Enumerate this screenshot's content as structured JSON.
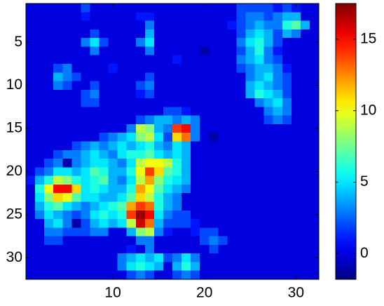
{
  "chart_data": {
    "type": "heatmap",
    "colormap": "jet",
    "y_reversed": true,
    "xlim": [
      0.5,
      32.5
    ],
    "ylim": [
      0.5,
      32.5
    ],
    "xticks": [
      10,
      20,
      30
    ],
    "yticks": [
      5,
      10,
      15,
      20,
      25,
      30
    ],
    "clim": [
      -1.8,
      17.5
    ],
    "cticks": [
      0,
      5,
      10,
      15
    ],
    "z": [
      [
        0,
        0,
        0,
        0,
        0,
        0,
        2,
        0,
        0,
        0,
        0,
        0,
        0,
        0,
        0,
        0,
        0,
        0,
        0,
        0,
        0,
        0,
        0,
        2,
        2,
        2,
        2,
        1,
        2,
        1,
        0,
        0
      ],
      [
        0,
        0,
        0,
        0,
        0,
        0,
        1,
        0,
        0,
        0,
        0,
        0,
        1,
        1,
        0,
        0,
        0,
        0,
        0,
        0,
        0,
        0,
        0,
        2,
        3,
        3,
        2,
        3,
        4,
        4,
        0,
        0
      ],
      [
        0,
        0,
        0,
        0,
        0,
        0,
        0,
        0,
        0,
        0,
        0,
        0,
        0,
        3,
        0,
        0,
        0,
        0,
        0,
        0,
        0,
        0,
        1,
        2,
        3,
        4,
        3,
        3,
        6,
        7,
        4,
        0
      ],
      [
        0,
        0,
        0,
        0,
        0,
        0,
        0,
        2,
        0,
        0,
        0,
        0,
        0,
        4,
        0,
        0,
        0,
        0,
        0,
        0,
        0,
        0,
        0,
        2,
        4,
        5,
        4,
        2,
        4,
        3,
        0,
        0
      ],
      [
        0,
        0,
        0,
        0,
        0,
        0,
        3,
        5,
        2,
        0,
        0,
        0,
        3,
        5,
        0,
        0,
        0,
        0,
        0,
        0,
        0,
        0,
        0,
        3,
        5,
        6,
        4,
        2,
        0,
        0,
        0,
        0
      ],
      [
        0,
        0,
        0,
        0,
        0,
        0,
        0,
        3,
        0,
        0,
        0,
        0,
        0,
        3,
        0,
        0,
        0,
        0,
        0,
        -1,
        0,
        0,
        0,
        2,
        4,
        6,
        3,
        1,
        0,
        0,
        0,
        0
      ],
      [
        0,
        0,
        0,
        0,
        0,
        0,
        0,
        0,
        0,
        0,
        0,
        0,
        0,
        0,
        0,
        0,
        1,
        0,
        0,
        0,
        0,
        0,
        0,
        3,
        4,
        5,
        3,
        2,
        0,
        0,
        0,
        0
      ],
      [
        0,
        0,
        0,
        2,
        3,
        0,
        0,
        0,
        0,
        1,
        0,
        0,
        0,
        0,
        0,
        0,
        0,
        0,
        0,
        0,
        0,
        0,
        0,
        2,
        3,
        4,
        4,
        3,
        1,
        0,
        0,
        0
      ],
      [
        0,
        0,
        0,
        4,
        3,
        2,
        0,
        0,
        0,
        0,
        0,
        0,
        0,
        2,
        0,
        0,
        0,
        0,
        0,
        0,
        0,
        0,
        0,
        0,
        3,
        4,
        5,
        3,
        2,
        0,
        0,
        0
      ],
      [
        0,
        0,
        0,
        3,
        2,
        0,
        0,
        2,
        0,
        0,
        0,
        0,
        2,
        3,
        0,
        0,
        0,
        0,
        0,
        0,
        0,
        0,
        0,
        0,
        4,
        5,
        4,
        3,
        2,
        0,
        0,
        0
      ],
      [
        0,
        0,
        0,
        0,
        0,
        0,
        2,
        3,
        0,
        0,
        0,
        0,
        1,
        2,
        0,
        0,
        0,
        0,
        0,
        0,
        0,
        0,
        0,
        0,
        4,
        6,
        5,
        4,
        2,
        0,
        0,
        0
      ],
      [
        0,
        0,
        0,
        0,
        0,
        0,
        2,
        2,
        0,
        0,
        0,
        0,
        0,
        0,
        0,
        0,
        0,
        0,
        0,
        0,
        0,
        0,
        0,
        0,
        0,
        3,
        4,
        5,
        3,
        0,
        0,
        0
      ],
      [
        0,
        0,
        0,
        0,
        0,
        0,
        0,
        0,
        0,
        0,
        0,
        0,
        0,
        0,
        0,
        2,
        2,
        1,
        0,
        0,
        0,
        0,
        0,
        0,
        0,
        0,
        3,
        4,
        3,
        0,
        0,
        0
      ],
      [
        0,
        0,
        0,
        0,
        0,
        0,
        0,
        0,
        0,
        0,
        0,
        0,
        2,
        3,
        4,
        4,
        3,
        4,
        3,
        0,
        0,
        0,
        0,
        0,
        0,
        0,
        2,
        3,
        2,
        0,
        0,
        0
      ],
      [
        0,
        0,
        0,
        0,
        0,
        0,
        0,
        0,
        0,
        0,
        0,
        3,
        9,
        8,
        4,
        3,
        14,
        15,
        3,
        0,
        0,
        0,
        0,
        0,
        0,
        0,
        0,
        0,
        0,
        0,
        0,
        0
      ],
      [
        0,
        0,
        0,
        0,
        0,
        0,
        0,
        0,
        2,
        3,
        4,
        5,
        8,
        9,
        5,
        2,
        11,
        13,
        3,
        0,
        -1,
        0,
        0,
        0,
        0,
        0,
        0,
        0,
        0,
        0,
        0,
        0
      ],
      [
        0,
        0,
        0,
        0,
        0,
        2,
        3,
        4,
        3,
        4,
        5,
        4,
        5,
        6,
        4,
        3,
        5,
        4,
        0,
        0,
        0,
        0,
        0,
        0,
        0,
        0,
        0,
        0,
        0,
        0,
        0,
        0
      ],
      [
        0,
        0,
        0,
        2,
        3,
        3,
        4,
        5,
        4,
        3,
        5,
        6,
        6,
        7,
        5,
        4,
        5,
        4,
        0,
        0,
        0,
        0,
        0,
        0,
        0,
        0,
        0,
        0,
        0,
        0,
        0,
        0
      ],
      [
        0,
        0,
        2,
        3,
        -1,
        3,
        4,
        5,
        5,
        4,
        3,
        5,
        9,
        10,
        10,
        9,
        6,
        4,
        0,
        0,
        0,
        0,
        0,
        0,
        0,
        0,
        0,
        0,
        0,
        0,
        0,
        0
      ],
      [
        0,
        2,
        3,
        5,
        5,
        4,
        5,
        7,
        6,
        4,
        4,
        6,
        10,
        14,
        11,
        7,
        6,
        4,
        0,
        0,
        0,
        0,
        0,
        0,
        0,
        0,
        0,
        0,
        0,
        0,
        0,
        0
      ],
      [
        1,
        4,
        6,
        9,
        8,
        6,
        5,
        6,
        7,
        4,
        3,
        5,
        9,
        12,
        8,
        6,
        5,
        4,
        0,
        0,
        0,
        0,
        0,
        0,
        0,
        0,
        0,
        0,
        0,
        0,
        0,
        0
      ],
      [
        0,
        6,
        10,
        15,
        15,
        11,
        5,
        6,
        5,
        4,
        4,
        6,
        12,
        10,
        7,
        5,
        4,
        3,
        0,
        0,
        0,
        0,
        0,
        0,
        0,
        0,
        0,
        0,
        0,
        0,
        0,
        0
      ],
      [
        0,
        5,
        8,
        11,
        10,
        7,
        5,
        5,
        4,
        4,
        5,
        7,
        11,
        9,
        6,
        4,
        3,
        0,
        0,
        0,
        0,
        0,
        0,
        0,
        0,
        0,
        0,
        0,
        0,
        0,
        0,
        0
      ],
      [
        0,
        4,
        6,
        7,
        5,
        4,
        3,
        4,
        5,
        6,
        7,
        12,
        14,
        13,
        6,
        4,
        3,
        0,
        0,
        0,
        0,
        0,
        0,
        0,
        0,
        0,
        0,
        0,
        0,
        0,
        0,
        0
      ],
      [
        0,
        3,
        5,
        4,
        3,
        2,
        3,
        5,
        6,
        5,
        6,
        14,
        17,
        15,
        5,
        3,
        2,
        2,
        0,
        0,
        0,
        0,
        0,
        0,
        0,
        0,
        0,
        0,
        0,
        0,
        0,
        0
      ],
      [
        0,
        0,
        4,
        5,
        3,
        -1,
        2,
        4,
        5,
        4,
        5,
        9,
        16,
        13,
        4,
        2,
        2,
        2,
        1,
        0,
        0,
        0,
        0,
        0,
        0,
        0,
        0,
        0,
        0,
        0,
        0,
        0
      ],
      [
        0,
        0,
        3,
        3,
        2,
        2,
        2,
        3,
        3,
        0,
        0,
        4,
        8,
        9,
        3,
        1,
        0,
        0,
        1,
        2,
        2,
        0,
        0,
        0,
        0,
        0,
        0,
        0,
        0,
        0,
        0,
        0
      ],
      [
        0,
        0,
        2,
        2,
        0,
        0,
        0,
        0,
        0,
        0,
        0,
        0,
        3,
        3,
        0,
        0,
        0,
        0,
        0,
        2,
        3,
        2,
        0,
        0,
        0,
        0,
        0,
        0,
        0,
        0,
        0,
        0
      ],
      [
        0,
        0,
        0,
        0,
        0,
        0,
        0,
        0,
        0,
        0,
        0,
        1,
        0,
        3,
        0,
        0,
        0,
        0,
        0,
        0,
        2,
        0,
        0,
        0,
        0,
        0,
        0,
        0,
        0,
        0,
        0,
        0
      ],
      [
        0,
        0,
        0,
        0,
        0,
        0,
        0,
        0,
        0,
        0,
        3,
        4,
        5,
        4,
        5,
        2,
        3,
        5,
        3,
        0,
        0,
        0,
        0,
        0,
        0,
        0,
        0,
        0,
        0,
        0,
        0,
        0
      ],
      [
        0,
        0,
        0,
        0,
        0,
        0,
        0,
        0,
        0,
        0,
        3,
        5,
        6,
        5,
        4,
        0,
        4,
        6,
        4,
        0,
        0,
        0,
        0,
        0,
        0,
        0,
        0,
        0,
        0,
        0,
        0,
        0
      ],
      [
        0,
        0,
        0,
        0,
        0,
        0,
        0,
        0,
        0,
        0,
        0,
        2,
        3,
        2,
        0,
        0,
        2,
        3,
        2,
        0,
        0,
        0,
        0,
        0,
        0,
        0,
        0,
        0,
        0,
        0,
        0,
        0
      ]
    ]
  }
}
